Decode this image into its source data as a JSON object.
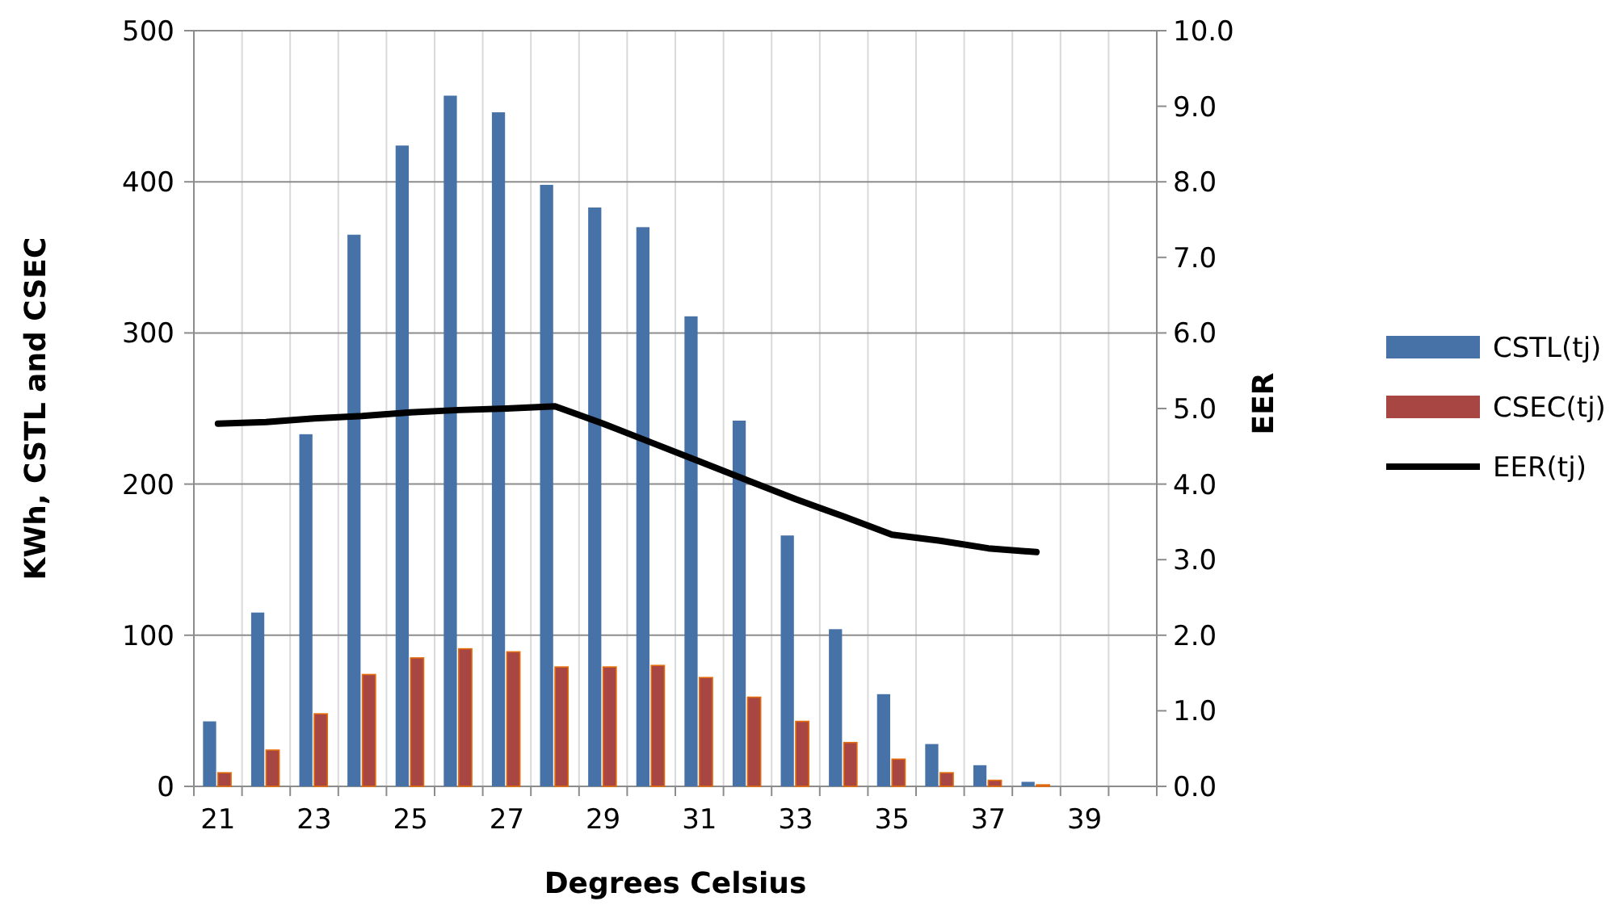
{
  "chart_data": {
    "type": "bar",
    "xlabel": "Degrees Celsius",
    "ylabel": "KWh, CSTL and CSEC",
    "y2label": "EER",
    "categories": [
      "21",
      null,
      "23",
      null,
      "25",
      null,
      "27",
      null,
      "29",
      null,
      "31",
      null,
      "33",
      null,
      "35",
      null,
      "37",
      null,
      "39",
      null
    ],
    "series": [
      {
        "name": "CSTL(tj)",
        "color": "#4672a8",
        "values": [
          43,
          115,
          233,
          365,
          424,
          457,
          446,
          398,
          383,
          370,
          311,
          242,
          166,
          104,
          61,
          28,
          14,
          3,
          null,
          null
        ]
      },
      {
        "name": "CSEC(tj)",
        "color": "#a84644",
        "values": [
          9,
          24,
          48,
          74,
          85,
          91,
          89,
          79,
          79,
          80,
          72,
          59,
          43,
          29,
          18,
          9,
          4,
          1,
          null,
          null
        ]
      },
      {
        "name": "EER(tj)",
        "type": "line",
        "axis": "y2",
        "color": "#000000",
        "values": [
          4.8,
          4.82,
          4.87,
          4.9,
          4.95,
          4.98,
          5.0,
          5.03,
          4.8,
          4.55,
          4.3,
          4.05,
          3.8,
          3.57,
          3.33,
          3.25,
          3.15,
          3.1,
          null,
          null
        ]
      }
    ],
    "ylim": [
      0,
      500
    ],
    "yticks": [
      0,
      100,
      200,
      300,
      400,
      500
    ],
    "y2lim": [
      0,
      10
    ],
    "y2ticks": [
      {
        "value": 0,
        "label": "0.0"
      },
      {
        "value": 1,
        "label": "1.0"
      },
      {
        "value": 2,
        "label": "2.0"
      },
      {
        "value": 3,
        "label": "3.0"
      },
      {
        "value": 4,
        "label": "4.0"
      },
      {
        "value": 5,
        "label": "5.0"
      },
      {
        "value": 6,
        "label": "6.0"
      },
      {
        "value": 7,
        "label": "7.0"
      },
      {
        "value": 8,
        "label": "8.0"
      },
      {
        "value": 9,
        "label": "9.0"
      },
      {
        "value": 10,
        "label": "10.0"
      }
    ],
    "grid": true,
    "legend": "right",
    "line_style": "solid",
    "marker": "none"
  }
}
